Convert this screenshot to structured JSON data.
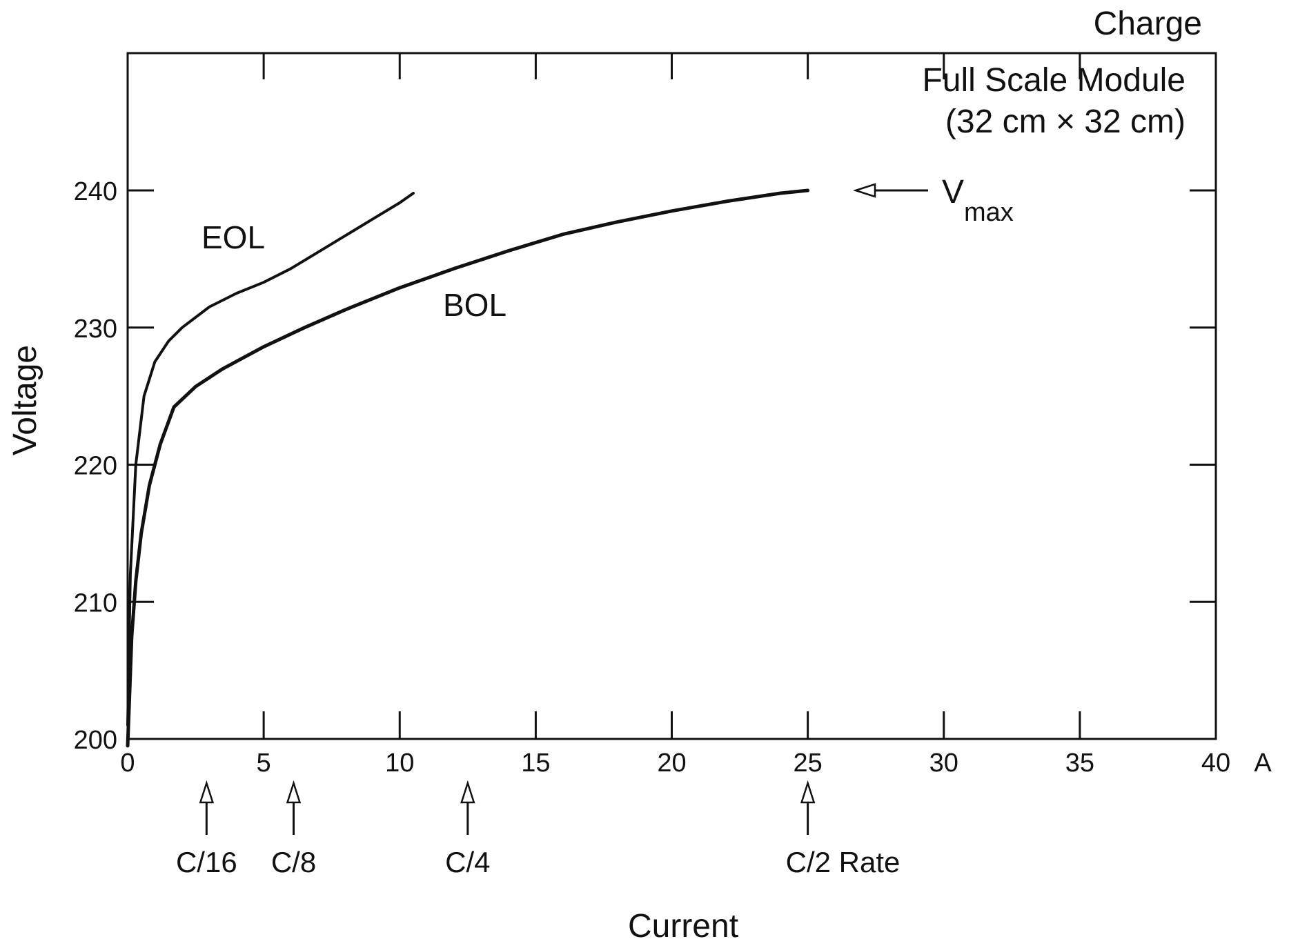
{
  "chart_data": {
    "type": "line",
    "title": "Charge",
    "annotation_lines": [
      "Full Scale Module",
      "(32 cm × 32 cm)"
    ],
    "xlabel": "Current",
    "x_unit": "A",
    "ylabel": "Voltage",
    "xlim": [
      0,
      40
    ],
    "ylim": [
      200,
      250
    ],
    "x_ticks": [
      0,
      5,
      10,
      15,
      20,
      25,
      30,
      35,
      40
    ],
    "x_tick_labels": [
      "0",
      "5",
      "10",
      "15",
      "20",
      "25",
      "30",
      "35",
      "40"
    ],
    "y_ticks": [
      200,
      210,
      220,
      230,
      240
    ],
    "y_tick_labels": [
      "200",
      "210",
      "220",
      "230",
      "240"
    ],
    "grid": false,
    "series": [
      {
        "name": "EOL",
        "x": [
          0,
          0.1,
          0.3,
          0.6,
          1.0,
          1.5,
          2.0,
          3.0,
          4.0,
          5.0,
          6.0,
          7.0,
          8.0,
          9.0,
          10.0,
          10.5
        ],
        "y": [
          201,
          212,
          220,
          225,
          227.5,
          229,
          230,
          231.5,
          232.5,
          233.3,
          234.3,
          235.5,
          236.7,
          237.9,
          239.1,
          239.8
        ]
      },
      {
        "name": "BOL",
        "x": [
          0,
          0.15,
          0.3,
          0.5,
          0.8,
          1.2,
          1.7,
          2.5,
          3.5,
          5,
          6.5,
          8,
          10,
          12,
          14,
          16,
          18,
          20,
          22,
          24,
          25
        ],
        "y": [
          199.5,
          207.5,
          211.5,
          215,
          218.5,
          221.5,
          224.2,
          225.7,
          227,
          228.6,
          230,
          231.3,
          232.9,
          234.3,
          235.6,
          236.8,
          237.7,
          238.5,
          239.2,
          239.8,
          240
        ]
      }
    ],
    "vmax": {
      "label": "V",
      "subscript": "max",
      "value": 240
    },
    "rate_markers": [
      {
        "label": "C/16",
        "x": 2.9
      },
      {
        "label": "C/8",
        "x": 6.1
      },
      {
        "label": "C/4",
        "x": 12.5
      },
      {
        "label": "C/2 Rate",
        "x": 25
      }
    ]
  }
}
